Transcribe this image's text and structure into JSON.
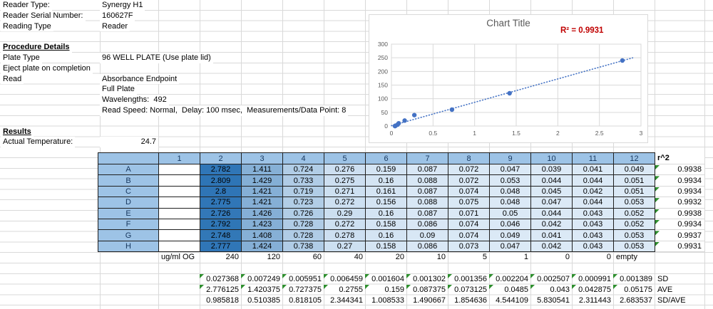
{
  "info": {
    "rows": [
      {
        "label": "Reader Type:",
        "value": "Synergy H1"
      },
      {
        "label": "Reader Serial Number:",
        "value": "160627F"
      },
      {
        "label": "Reading Type",
        "value": "Reader"
      },
      {
        "label": "",
        "value": ""
      },
      {
        "label": "Procedure Details",
        "value": "",
        "section": true
      },
      {
        "label": "Plate Type",
        "value": "96 WELL PLATE (Use plate lid)"
      },
      {
        "label": "Eject plate on completion",
        "value": ""
      },
      {
        "label": "Read",
        "value": "Absorbance Endpoint"
      },
      {
        "label": "",
        "value": "Full Plate"
      },
      {
        "label": "",
        "value": "Wavelengths:  492"
      },
      {
        "label": "",
        "value": "Read Speed: Normal,  Delay: 100 msec,  Measurements/Data Point: 8"
      },
      {
        "label": "",
        "value": ""
      },
      {
        "label": "Results",
        "value": "",
        "section": true
      },
      {
        "label": "Actual Temperature:",
        "value": "24.7",
        "value_align": "right"
      }
    ]
  },
  "chart_data": {
    "type": "scatter",
    "title": "Chart Title",
    "r_squared_label": "R² = 0.9931",
    "x": [
      2.776125,
      1.420375,
      0.727375,
      0.2755,
      0.159,
      0.087375,
      0.073125,
      0.0485,
      0.043,
      0.042875
    ],
    "y": [
      240,
      120,
      60,
      40,
      20,
      10,
      5,
      1,
      0,
      0
    ],
    "xlim": [
      0,
      3
    ],
    "ylim": [
      0,
      300
    ],
    "x_ticks": [
      0,
      0.5,
      1,
      1.5,
      2,
      2.5,
      3
    ],
    "y_ticks": [
      0,
      50,
      100,
      150,
      200,
      250,
      300
    ],
    "grid": true,
    "legend": false,
    "trendline": {
      "slope": 85.75,
      "intercept": 1.12,
      "x_start": 0,
      "x_end": 2.9,
      "style": "dotted"
    }
  },
  "plate": {
    "col_headers": [
      "",
      "1",
      "2",
      "3",
      "4",
      "5",
      "6",
      "7",
      "8",
      "9",
      "10",
      "11",
      "12"
    ],
    "r2_header": "r^2",
    "rows": [
      {
        "label": "A",
        "values": [
          "",
          "2.782",
          "1.411",
          "0.724",
          "0.276",
          "0.159",
          "0.087",
          "0.072",
          "0.047",
          "0.039",
          "0.041",
          "0.049"
        ],
        "r2": "0.9938"
      },
      {
        "label": "B",
        "values": [
          "",
          "2.809",
          "1.429",
          "0.733",
          "0.275",
          "0.16",
          "0.088",
          "0.072",
          "0.053",
          "0.044",
          "0.044",
          "0.051"
        ],
        "r2": "0.9934"
      },
      {
        "label": "C",
        "values": [
          "",
          "2.8",
          "1.421",
          "0.719",
          "0.271",
          "0.161",
          "0.087",
          "0.074",
          "0.048",
          "0.045",
          "0.042",
          "0.051"
        ],
        "r2": "0.9934"
      },
      {
        "label": "D",
        "values": [
          "",
          "2.775",
          "1.421",
          "0.723",
          "0.272",
          "0.156",
          "0.088",
          "0.075",
          "0.048",
          "0.047",
          "0.044",
          "0.053"
        ],
        "r2": "0.9932"
      },
      {
        "label": "E",
        "values": [
          "",
          "2.726",
          "1.426",
          "0.726",
          "0.29",
          "0.16",
          "0.087",
          "0.071",
          "0.05",
          "0.044",
          "0.043",
          "0.052"
        ],
        "r2": "0.9938"
      },
      {
        "label": "F",
        "values": [
          "",
          "2.792",
          "1.423",
          "0.728",
          "0.272",
          "0.158",
          "0.086",
          "0.074",
          "0.046",
          "0.042",
          "0.043",
          "0.052"
        ],
        "r2": "0.9934"
      },
      {
        "label": "G",
        "values": [
          "",
          "2.748",
          "1.408",
          "0.728",
          "0.278",
          "0.16",
          "0.09",
          "0.074",
          "0.049",
          "0.041",
          "0.043",
          "0.053"
        ],
        "r2": "0.9937"
      },
      {
        "label": "H",
        "values": [
          "",
          "2.777",
          "1.424",
          "0.738",
          "0.27",
          "0.158",
          "0.086",
          "0.073",
          "0.047",
          "0.042",
          "0.043",
          "0.053"
        ],
        "r2": "0.9931"
      }
    ],
    "concentration": {
      "label": "ug/ml OG",
      "values": [
        "240",
        "120",
        "60",
        "40",
        "20",
        "10",
        "5",
        "1",
        "0",
        "0"
      ],
      "last_text": "empty"
    },
    "stats": [
      {
        "label": "SD",
        "flagged": true,
        "values": [
          "0.027368",
          "0.007249",
          "0.005951",
          "0.006459",
          "0.001604",
          "0.001302",
          "0.001356",
          "0.002204",
          "0.002507",
          "0.000991",
          "0.001389"
        ]
      },
      {
        "label": "AVE",
        "flagged": true,
        "values": [
          "2.776125",
          "1.420375",
          "0.727375",
          "0.2755",
          "0.159",
          "0.087375",
          "0.073125",
          "0.0485",
          "0.043",
          "0.042875",
          "0.05175"
        ]
      },
      {
        "label": "SD/AVE",
        "flagged": false,
        "values": [
          "0.985818",
          "0.510385",
          "0.818105",
          "2.344341",
          "1.008533",
          "1.490667",
          "1.854636",
          "4.544109",
          "5.830541",
          "2.311443",
          "2.683537"
        ]
      }
    ]
  },
  "colors": {
    "header_fill": "#9dc3e6",
    "scale_min": "#deebf7",
    "scale_max": "#2e75b6",
    "scale_max_value": 2.809,
    "flag_green": "#2e8f2e",
    "r2_red": "#c00000",
    "chart_point": "#4472c4",
    "chart_text": "#595959",
    "gridline": "#d9d9d9"
  }
}
